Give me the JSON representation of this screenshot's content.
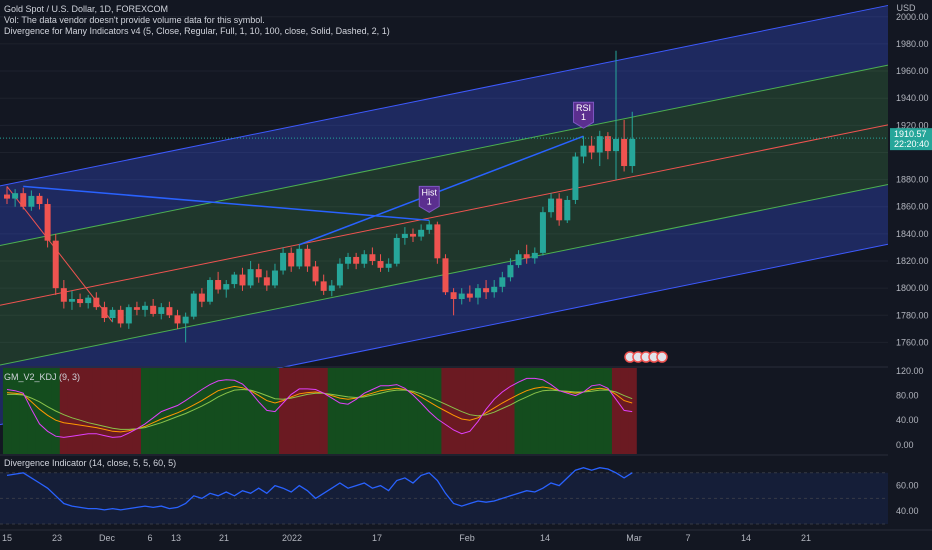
{
  "header": {
    "symbol_line": "Gold Spot / U.S. Dollar, 1D, FOREXCOM",
    "vol_line": "Vol: The data vendor doesn't provide volume data for this symbol.",
    "divergence_line": "Divergence for Many Indicators v4 (5, Close, Regular, Full, 1, 10, 100, close, Solid, Dashed, 2, 1)"
  },
  "price_axis": {
    "currency": "USD",
    "ticks": [
      "2000.00",
      "1980.00",
      "1960.00",
      "1940.00",
      "1920.00",
      "1880.00",
      "1860.00",
      "1840.00",
      "1820.00",
      "1800.00",
      "1780.00",
      "1760.00"
    ],
    "last_price": "1910.57",
    "countdown": "22:20:40"
  },
  "kdj_pane": {
    "title": "GM_V2_KDJ (9, 3)",
    "ticks": [
      "120.00",
      "80.00",
      "40.00",
      "0.00"
    ]
  },
  "div_pane": {
    "title": "Divergence Indicator (14, close, 5, 5, 60, 5)",
    "ticks": [
      "60.00",
      "40.00"
    ]
  },
  "time_axis": {
    "ticks": [
      "15",
      "23",
      "Dec",
      "6",
      "13",
      "21",
      "2022",
      "17",
      "Feb",
      "14",
      "Mar",
      "7",
      "14",
      "21"
    ]
  },
  "markers": {
    "hist_label": "Hist",
    "hist_count": "1",
    "rsi_label": "RSI",
    "rsi_count": "1"
  },
  "colors": {
    "up": "#26a69a",
    "down": "#ef5350",
    "background": "#131722",
    "channel_outer": "#3d5afe",
    "channel_inner": "#4caf50",
    "rsi_line": "#2962ff",
    "tag_bg": "#26a69a"
  },
  "chart_data": {
    "type": "candlestick",
    "ylim": [
      1745,
      2010
    ],
    "candles": [
      {
        "o": 1869,
        "h": 1875,
        "l": 1862,
        "c": 1866
      },
      {
        "o": 1866,
        "h": 1873,
        "l": 1860,
        "c": 1870
      },
      {
        "o": 1870,
        "h": 1874,
        "l": 1858,
        "c": 1860
      },
      {
        "o": 1860,
        "h": 1872,
        "l": 1857,
        "c": 1868
      },
      {
        "o": 1868,
        "h": 1870,
        "l": 1858,
        "c": 1862
      },
      {
        "o": 1862,
        "h": 1866,
        "l": 1830,
        "c": 1835
      },
      {
        "o": 1835,
        "h": 1840,
        "l": 1795,
        "c": 1800
      },
      {
        "o": 1800,
        "h": 1806,
        "l": 1785,
        "c": 1790
      },
      {
        "o": 1790,
        "h": 1798,
        "l": 1784,
        "c": 1792
      },
      {
        "o": 1792,
        "h": 1796,
        "l": 1786,
        "c": 1789
      },
      {
        "o": 1789,
        "h": 1795,
        "l": 1785,
        "c": 1793
      },
      {
        "o": 1793,
        "h": 1797,
        "l": 1784,
        "c": 1786
      },
      {
        "o": 1786,
        "h": 1790,
        "l": 1775,
        "c": 1778
      },
      {
        "o": 1778,
        "h": 1786,
        "l": 1775,
        "c": 1784
      },
      {
        "o": 1784,
        "h": 1787,
        "l": 1771,
        "c": 1774
      },
      {
        "o": 1774,
        "h": 1788,
        "l": 1770,
        "c": 1786
      },
      {
        "o": 1786,
        "h": 1790,
        "l": 1780,
        "c": 1784
      },
      {
        "o": 1784,
        "h": 1790,
        "l": 1779,
        "c": 1787
      },
      {
        "o": 1787,
        "h": 1792,
        "l": 1779,
        "c": 1781
      },
      {
        "o": 1781,
        "h": 1789,
        "l": 1777,
        "c": 1786
      },
      {
        "o": 1786,
        "h": 1790,
        "l": 1778,
        "c": 1780
      },
      {
        "o": 1780,
        "h": 1784,
        "l": 1770,
        "c": 1774
      },
      {
        "o": 1774,
        "h": 1782,
        "l": 1760,
        "c": 1779
      },
      {
        "o": 1779,
        "h": 1798,
        "l": 1777,
        "c": 1796
      },
      {
        "o": 1796,
        "h": 1800,
        "l": 1786,
        "c": 1790
      },
      {
        "o": 1790,
        "h": 1808,
        "l": 1788,
        "c": 1806
      },
      {
        "o": 1806,
        "h": 1812,
        "l": 1796,
        "c": 1799
      },
      {
        "o": 1799,
        "h": 1806,
        "l": 1793,
        "c": 1803
      },
      {
        "o": 1803,
        "h": 1812,
        "l": 1800,
        "c": 1810
      },
      {
        "o": 1810,
        "h": 1815,
        "l": 1798,
        "c": 1802
      },
      {
        "o": 1802,
        "h": 1820,
        "l": 1800,
        "c": 1814
      },
      {
        "o": 1814,
        "h": 1818,
        "l": 1804,
        "c": 1808
      },
      {
        "o": 1808,
        "h": 1813,
        "l": 1798,
        "c": 1802
      },
      {
        "o": 1802,
        "h": 1818,
        "l": 1800,
        "c": 1813
      },
      {
        "o": 1813,
        "h": 1830,
        "l": 1810,
        "c": 1826
      },
      {
        "o": 1826,
        "h": 1830,
        "l": 1812,
        "c": 1816
      },
      {
        "o": 1816,
        "h": 1832,
        "l": 1814,
        "c": 1829
      },
      {
        "o": 1829,
        "h": 1832,
        "l": 1812,
        "c": 1816
      },
      {
        "o": 1816,
        "h": 1820,
        "l": 1802,
        "c": 1805
      },
      {
        "o": 1805,
        "h": 1810,
        "l": 1795,
        "c": 1798
      },
      {
        "o": 1798,
        "h": 1806,
        "l": 1794,
        "c": 1802
      },
      {
        "o": 1802,
        "h": 1822,
        "l": 1800,
        "c": 1818
      },
      {
        "o": 1818,
        "h": 1826,
        "l": 1814,
        "c": 1823
      },
      {
        "o": 1823,
        "h": 1826,
        "l": 1814,
        "c": 1818
      },
      {
        "o": 1818,
        "h": 1828,
        "l": 1815,
        "c": 1825
      },
      {
        "o": 1825,
        "h": 1830,
        "l": 1817,
        "c": 1820
      },
      {
        "o": 1820,
        "h": 1825,
        "l": 1812,
        "c": 1815
      },
      {
        "o": 1815,
        "h": 1822,
        "l": 1812,
        "c": 1818
      },
      {
        "o": 1818,
        "h": 1840,
        "l": 1816,
        "c": 1837
      },
      {
        "o": 1837,
        "h": 1845,
        "l": 1832,
        "c": 1840
      },
      {
        "o": 1840,
        "h": 1844,
        "l": 1834,
        "c": 1838
      },
      {
        "o": 1838,
        "h": 1847,
        "l": 1835,
        "c": 1843
      },
      {
        "o": 1843,
        "h": 1850,
        "l": 1840,
        "c": 1847
      },
      {
        "o": 1847,
        "h": 1849,
        "l": 1818,
        "c": 1822
      },
      {
        "o": 1822,
        "h": 1825,
        "l": 1795,
        "c": 1797
      },
      {
        "o": 1797,
        "h": 1800,
        "l": 1780,
        "c": 1792
      },
      {
        "o": 1792,
        "h": 1800,
        "l": 1788,
        "c": 1796
      },
      {
        "o": 1796,
        "h": 1802,
        "l": 1790,
        "c": 1793
      },
      {
        "o": 1793,
        "h": 1803,
        "l": 1788,
        "c": 1800
      },
      {
        "o": 1800,
        "h": 1806,
        "l": 1792,
        "c": 1797
      },
      {
        "o": 1797,
        "h": 1806,
        "l": 1793,
        "c": 1801
      },
      {
        "o": 1801,
        "h": 1812,
        "l": 1797,
        "c": 1808
      },
      {
        "o": 1808,
        "h": 1822,
        "l": 1805,
        "c": 1817
      },
      {
        "o": 1817,
        "h": 1828,
        "l": 1815,
        "c": 1825
      },
      {
        "o": 1825,
        "h": 1832,
        "l": 1818,
        "c": 1822
      },
      {
        "o": 1822,
        "h": 1830,
        "l": 1818,
        "c": 1826
      },
      {
        "o": 1826,
        "h": 1860,
        "l": 1824,
        "c": 1856
      },
      {
        "o": 1856,
        "h": 1870,
        "l": 1852,
        "c": 1866
      },
      {
        "o": 1866,
        "h": 1870,
        "l": 1846,
        "c": 1850
      },
      {
        "o": 1850,
        "h": 1868,
        "l": 1848,
        "c": 1865
      },
      {
        "o": 1865,
        "h": 1900,
        "l": 1862,
        "c": 1897
      },
      {
        "o": 1897,
        "h": 1912,
        "l": 1892,
        "c": 1905
      },
      {
        "o": 1905,
        "h": 1912,
        "l": 1895,
        "c": 1900
      },
      {
        "o": 1900,
        "h": 1916,
        "l": 1890,
        "c": 1912
      },
      {
        "o": 1912,
        "h": 1915,
        "l": 1895,
        "c": 1901
      },
      {
        "o": 1901,
        "h": 1975,
        "l": 1880,
        "c": 1910
      },
      {
        "o": 1910,
        "h": 1924,
        "l": 1886,
        "c": 1890
      },
      {
        "o": 1890,
        "h": 1930,
        "l": 1885,
        "c": 1910
      }
    ],
    "kdj": {
      "k": [
        85,
        84,
        82,
        70,
        58,
        48,
        40,
        36,
        34,
        32,
        30,
        28,
        25,
        22,
        21,
        23,
        26,
        30,
        36,
        42,
        47,
        52,
        58,
        65,
        72,
        80,
        88,
        92,
        95,
        93,
        88,
        80,
        72,
        68,
        72,
        78,
        83,
        85,
        86,
        84,
        80,
        76,
        74,
        76,
        80,
        84,
        88,
        90,
        92,
        90,
        85,
        78,
        70,
        62,
        55,
        48,
        42,
        40,
        44,
        52,
        60,
        68,
        75,
        82,
        88,
        92,
        94,
        92,
        88,
        86,
        84,
        86,
        90,
        92,
        90,
        82,
        72,
        68
      ],
      "d": [
        82,
        82,
        81,
        76,
        70,
        62,
        55,
        49,
        44,
        40,
        36,
        33,
        30,
        27,
        25,
        25,
        26,
        28,
        32,
        36,
        41,
        46,
        51,
        57,
        63,
        70,
        78,
        84,
        89,
        90,
        89,
        85,
        80,
        75,
        74,
        76,
        79,
        82,
        84,
        84,
        82,
        80,
        78,
        77,
        78,
        81,
        84,
        87,
        89,
        89,
        87,
        83,
        78,
        72,
        66,
        60,
        54,
        49,
        47,
        49,
        53,
        59,
        65,
        72,
        78,
        84,
        88,
        89,
        88,
        87,
        86,
        86,
        87,
        89,
        89,
        86,
        80,
        75
      ],
      "j": [
        90,
        88,
        84,
        58,
        34,
        22,
        14,
        12,
        14,
        16,
        18,
        18,
        15,
        12,
        13,
        19,
        26,
        34,
        44,
        54,
        59,
        64,
        72,
        81,
        90,
        98,
        104,
        106,
        105,
        99,
        86,
        70,
        56,
        54,
        68,
        82,
        91,
        91,
        90,
        84,
        76,
        68,
        66,
        74,
        84,
        90,
        96,
        96,
        98,
        92,
        81,
        68,
        54,
        42,
        33,
        24,
        18,
        22,
        38,
        58,
        74,
        86,
        95,
        102,
        108,
        108,
        106,
        98,
        88,
        84,
        80,
        86,
        96,
        98,
        92,
        74,
        56,
        54
      ],
      "bands": [
        "up",
        "up",
        "up",
        "up",
        "up",
        "up",
        "up",
        "down",
        "down",
        "down",
        "down",
        "down",
        "down",
        "down",
        "down",
        "down",
        "down",
        "up",
        "up",
        "up",
        "up",
        "up",
        "up",
        "up",
        "up",
        "up",
        "up",
        "up",
        "up",
        "up",
        "up",
        "up",
        "up",
        "up",
        "down",
        "down",
        "down",
        "down",
        "down",
        "down",
        "up",
        "up",
        "up",
        "up",
        "up",
        "up",
        "up",
        "up",
        "up",
        "up",
        "up",
        "up",
        "up",
        "up",
        "down",
        "down",
        "down",
        "down",
        "down",
        "down",
        "down",
        "down",
        "down",
        "up",
        "up",
        "up",
        "up",
        "up",
        "up",
        "up",
        "up",
        "up",
        "up",
        "up",
        "up",
        "down",
        "down",
        "down"
      ],
      "ylim": [
        -15,
        125
      ]
    },
    "rsi": {
      "values": [
        68,
        69,
        70,
        66,
        62,
        58,
        52,
        46,
        44,
        43,
        42,
        42,
        41,
        42,
        41,
        42,
        43,
        44,
        43,
        44,
        42,
        43,
        46,
        52,
        50,
        54,
        52,
        55,
        52,
        56,
        54,
        58,
        54,
        60,
        58,
        55,
        60,
        56,
        50,
        54,
        58,
        62,
        58,
        60,
        62,
        58,
        60,
        56,
        64,
        66,
        62,
        68,
        70,
        64,
        54,
        46,
        44,
        46,
        48,
        47,
        48,
        50,
        52,
        54,
        56,
        55,
        58,
        62,
        60,
        66,
        72,
        74,
        72,
        74,
        73,
        70,
        66,
        70
      ],
      "ylim": [
        30,
        80
      ]
    }
  }
}
